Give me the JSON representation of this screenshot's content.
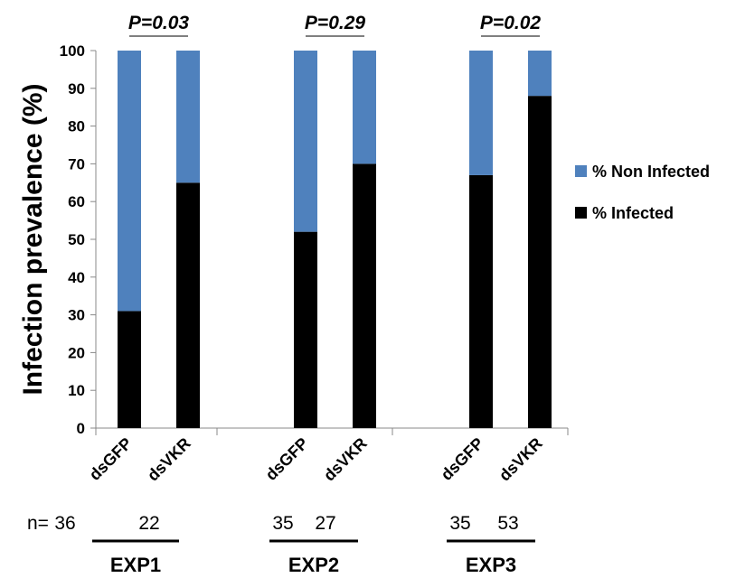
{
  "chart_data": {
    "type": "bar",
    "stacked": true,
    "ylabel": "Infection prevalence (%)",
    "ylim": [
      0,
      100
    ],
    "yticks": [
      0,
      10,
      20,
      30,
      40,
      50,
      60,
      70,
      80,
      90,
      100
    ],
    "groups": [
      {
        "label": "EXP1",
        "p_value": "P=0.03",
        "categories": [
          "dsGFP",
          "dsVKR"
        ],
        "n": [
          36,
          22
        ]
      },
      {
        "label": "EXP2",
        "p_value": "P=0.29",
        "categories": [
          "dsGFP",
          "dsVKR"
        ],
        "n": [
          35,
          27
        ]
      },
      {
        "label": "EXP3",
        "p_value": "P=0.02",
        "categories": [
          "dsGFP",
          "dsVKR"
        ],
        "n": [
          35,
          53
        ]
      }
    ],
    "series": [
      {
        "name": "% Infected",
        "color": "#000000",
        "values": [
          31,
          65,
          52,
          70,
          67,
          88
        ]
      },
      {
        "name": "% Non Infected",
        "color": "#4f81bd",
        "values": [
          69,
          35,
          48,
          30,
          33,
          12
        ]
      }
    ],
    "legend_order": [
      "% Non Infected",
      "% Infected"
    ],
    "legend_position": "right",
    "n_prefix": "n=",
    "grid": false
  }
}
